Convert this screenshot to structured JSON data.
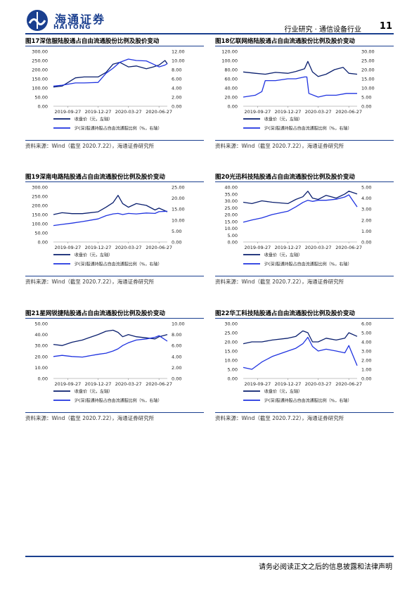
{
  "header": {
    "logo_cn": "海通证券",
    "logo_en": "HAITONG",
    "section": "行业研究 · 通信设备行业",
    "page": "11"
  },
  "footer": {
    "text": "请务必阅读正文之后的信息披露和法律声明"
  },
  "colors": {
    "price": "#0a1f6e",
    "ratio": "#1f33e0",
    "accent": "#1a3f8f"
  },
  "chart_data": [
    {
      "type": "line",
      "title": "图17深信服陆股通占自由流通股份比例及股价变动",
      "x_ticks": [
        "2019-09-27",
        "2019-12-27",
        "2020-03-27",
        "2020-06-27"
      ],
      "x_range": [
        "2019-08-15",
        "2020-07-22"
      ],
      "y_left": {
        "min": 0,
        "max": 300,
        "ticks": [
          "0.00",
          "50.00",
          "100.00",
          "150.00",
          "200.00",
          "250.00",
          "300.00"
        ]
      },
      "y_right": {
        "min": 0,
        "max": 12,
        "ticks": [
          "0.00",
          "2.00",
          "4.00",
          "6.00",
          "8.00",
          "10.00",
          "12.00"
        ]
      },
      "legend_position": "bottom-left",
      "series": [
        {
          "name": "收盘价（元，左轴）",
          "axis": "left",
          "x": [
            "2019-08-15",
            "2019-09-10",
            "2019-10-20",
            "2019-11-15",
            "2019-12-27",
            "2020-01-20",
            "2020-02-10",
            "2020-03-01",
            "2020-03-27",
            "2020-04-20",
            "2020-05-20",
            "2020-06-10",
            "2020-06-27",
            "2020-07-15",
            "2020-07-22"
          ],
          "values": [
            105,
            110,
            155,
            160,
            160,
            185,
            230,
            240,
            215,
            220,
            205,
            215,
            225,
            250,
            232
          ]
        },
        {
          "name": "沪(深)股通持股占自由流通股比例（%，右轴）",
          "axis": "right",
          "x": [
            "2019-08-15",
            "2019-09-10",
            "2019-10-20",
            "2019-11-15",
            "2019-12-27",
            "2020-01-20",
            "2020-02-10",
            "2020-03-01",
            "2020-03-27",
            "2020-04-20",
            "2020-05-20",
            "2020-06-10",
            "2020-06-27",
            "2020-07-15",
            "2020-07-22"
          ],
          "values": [
            4.4,
            4.6,
            5.1,
            5.1,
            5.2,
            7.2,
            8.3,
            9.6,
            10.3,
            10.0,
            9.9,
            9.2,
            8.6,
            9.0,
            9.3
          ]
        }
      ],
      "source": "资料来源：Wind（截至 2020.7.22），海通证券研究所"
    },
    {
      "type": "line",
      "title": "图18亿联网络陆股通占自由流通股份比例及股价变动",
      "x_ticks": [
        "2019-09-27",
        "2019-12-27",
        "2020-03-27",
        "2020-06-27"
      ],
      "x_range": [
        "2019-08-15",
        "2020-07-22"
      ],
      "y_left": {
        "min": 0,
        "max": 120,
        "ticks": [
          "0.00",
          "20.00",
          "40.00",
          "60.00",
          "80.00",
          "100.00",
          "120.00"
        ]
      },
      "y_right": {
        "min": 0,
        "max": 30,
        "ticks": [
          "0.00",
          "5.00",
          "10.00",
          "15.00",
          "20.00",
          "25.00",
          "30.00"
        ]
      },
      "legend_position": "bottom-left",
      "series": [
        {
          "name": "收盘价（元，左轴）",
          "axis": "left",
          "x": [
            "2019-08-15",
            "2019-09-20",
            "2019-10-20",
            "2019-11-20",
            "2019-12-27",
            "2020-01-20",
            "2020-02-15",
            "2020-02-25",
            "2020-03-10",
            "2020-03-27",
            "2020-04-20",
            "2020-05-15",
            "2020-06-10",
            "2020-06-27",
            "2020-07-22"
          ],
          "values": [
            75,
            72,
            70,
            74,
            72,
            76,
            82,
            98,
            75,
            65,
            70,
            80,
            85,
            72,
            70
          ]
        },
        {
          "name": "沪(深)股通持股占自由流通股比例（%，右轴）",
          "axis": "right",
          "x": [
            "2019-08-15",
            "2019-09-20",
            "2019-10-10",
            "2019-10-20",
            "2019-11-20",
            "2019-12-27",
            "2020-01-20",
            "2020-02-15",
            "2020-02-22",
            "2020-02-28",
            "2020-03-27",
            "2020-04-20",
            "2020-05-20",
            "2020-06-20",
            "2020-07-22"
          ],
          "values": [
            5,
            6,
            8,
            14,
            14,
            15,
            15,
            16,
            16,
            7,
            5,
            6,
            6,
            7,
            7
          ]
        }
      ],
      "source": "资料来源：Wind（截至 2020.7.22），海通证券研究所"
    },
    {
      "type": "line",
      "title": "图19深南电路陆股通占自由流通股份比例及股价变动",
      "x_ticks": [
        "2019-09-27",
        "2019-12-27",
        "2020-03-27",
        "2020-06-27"
      ],
      "x_range": [
        "2019-08-15",
        "2020-07-22"
      ],
      "y_left": {
        "min": 0,
        "max": 300,
        "ticks": [
          "0.00",
          "50.00",
          "100.00",
          "150.00",
          "200.00",
          "250.00",
          "300.00"
        ]
      },
      "y_right": {
        "min": 0,
        "max": 25,
        "ticks": [
          "0.00",
          "5.00",
          "10.00",
          "15.00",
          "20.00",
          "25.00"
        ]
      },
      "legend_position": "bottom-left",
      "series": [
        {
          "name": "收盘价（元，左轴）",
          "axis": "left",
          "x": [
            "2019-08-15",
            "2019-09-10",
            "2019-10-10",
            "2019-11-10",
            "2019-12-27",
            "2020-01-20",
            "2020-02-10",
            "2020-02-25",
            "2020-03-10",
            "2020-03-27",
            "2020-04-20",
            "2020-05-20",
            "2020-06-15",
            "2020-06-27",
            "2020-07-22"
          ],
          "values": [
            150,
            160,
            155,
            155,
            165,
            190,
            215,
            255,
            210,
            190,
            210,
            200,
            175,
            185,
            165
          ]
        },
        {
          "name": "沪(深)股通持股占自由流通股比例（%，右轴）",
          "axis": "right",
          "x": [
            "2019-08-15",
            "2019-09-10",
            "2019-10-10",
            "2019-11-10",
            "2019-12-27",
            "2020-01-20",
            "2020-02-10",
            "2020-02-25",
            "2020-03-10",
            "2020-03-27",
            "2020-04-20",
            "2020-05-20",
            "2020-06-15",
            "2020-06-27",
            "2020-07-22"
          ],
          "values": [
            7.5,
            8.0,
            8.6,
            9.3,
            10.5,
            12.0,
            12.8,
            13.0,
            12.5,
            13.0,
            12.8,
            13.2,
            13.0,
            13.8,
            14.0
          ]
        }
      ],
      "source": "资料来源：Wind（截至 2020.7.22），海通证券研究所"
    },
    {
      "type": "line",
      "title": "图20光迅科技陆股通占自由流通股份比例及股价变动",
      "x_ticks": [
        "2019-09-27",
        "2019-12-27",
        "2020-03-27",
        "2020-06-27"
      ],
      "x_range": [
        "2019-08-15",
        "2020-07-22"
      ],
      "y_left": {
        "min": 0,
        "max": 40,
        "ticks": [
          "0.00",
          "5.00",
          "10.00",
          "15.00",
          "20.00",
          "25.00",
          "30.00",
          "35.00",
          "40.00"
        ]
      },
      "y_right": {
        "min": 0,
        "max": 5,
        "ticks": [
          "0.00",
          "1.00",
          "2.00",
          "3.00",
          "4.00",
          "5.00"
        ]
      },
      "legend_position": "bottom-left",
      "series": [
        {
          "name": "收盘价（元，左轴）",
          "axis": "left",
          "x": [
            "2019-08-15",
            "2019-09-10",
            "2019-10-10",
            "2019-11-10",
            "2019-12-27",
            "2020-01-20",
            "2020-02-10",
            "2020-02-25",
            "2020-03-10",
            "2020-03-27",
            "2020-04-20",
            "2020-05-20",
            "2020-06-15",
            "2020-06-27",
            "2020-07-22"
          ],
          "values": [
            29,
            28,
            30,
            29,
            28,
            31,
            33,
            37,
            32,
            31,
            34,
            32,
            35,
            37,
            35
          ]
        },
        {
          "name": "沪(深)股通持股占自由流通股比例（%，右轴）",
          "axis": "right",
          "x": [
            "2019-08-15",
            "2019-09-10",
            "2019-10-10",
            "2019-11-10",
            "2019-12-27",
            "2020-01-20",
            "2020-02-10",
            "2020-02-25",
            "2020-03-10",
            "2020-03-27",
            "2020-04-20",
            "2020-05-20",
            "2020-06-15",
            "2020-06-27",
            "2020-07-22"
          ],
          "values": [
            1.8,
            2.0,
            2.2,
            2.5,
            2.8,
            3.2,
            3.6,
            3.8,
            3.7,
            3.8,
            3.8,
            3.9,
            4.1,
            4.3,
            3.2
          ]
        }
      ],
      "source": "资料来源：Wind（截至 2020.7.22），海通证券研究所"
    },
    {
      "type": "line",
      "title": "图21星网锐捷陆股通占自由流通股份比例及股价变动",
      "x_ticks": [
        "2019-09-27",
        "2019-12-27",
        "2020-03-27",
        "2020-06-27"
      ],
      "x_range": [
        "2019-08-15",
        "2020-07-22"
      ],
      "y_left": {
        "min": 0,
        "max": 50,
        "ticks": [
          "0.00",
          "10.00",
          "20.00",
          "30.00",
          "40.00",
          "50.00"
        ]
      },
      "y_right": {
        "min": 0,
        "max": 10,
        "ticks": [
          "0.00",
          "2.00",
          "4.00",
          "6.00",
          "8.00",
          "10.00"
        ]
      },
      "legend_position": "bottom-left",
      "series": [
        {
          "name": "收盘价（元，左轴）",
          "axis": "left",
          "x": [
            "2019-08-15",
            "2019-09-10",
            "2019-10-10",
            "2019-11-10",
            "2019-12-27",
            "2020-01-20",
            "2020-02-10",
            "2020-02-25",
            "2020-03-10",
            "2020-03-27",
            "2020-04-20",
            "2020-05-20",
            "2020-06-15",
            "2020-06-27",
            "2020-07-22"
          ],
          "values": [
            31,
            30,
            33,
            35,
            40,
            43,
            44,
            42,
            38,
            40,
            38,
            37,
            36,
            38,
            40
          ]
        },
        {
          "name": "沪(深)股通持股占自由流通股比例（%，右轴）",
          "axis": "right",
          "x": [
            "2019-08-15",
            "2019-09-10",
            "2019-10-10",
            "2019-11-10",
            "2019-12-27",
            "2020-01-20",
            "2020-02-10",
            "2020-02-25",
            "2020-03-10",
            "2020-03-27",
            "2020-04-20",
            "2020-05-20",
            "2020-06-15",
            "2020-06-27",
            "2020-07-22"
          ],
          "values": [
            4.0,
            4.2,
            4.0,
            3.9,
            4.4,
            4.6,
            5.0,
            5.4,
            6.0,
            6.5,
            7.0,
            7.2,
            7.5,
            7.8,
            6.8
          ]
        }
      ],
      "source": "资料来源：Wind（截至 2020.7.22），海通证券研究所"
    },
    {
      "type": "line",
      "title": "图22华工科技陆股通占自由流通股份比例及股价变动",
      "x_ticks": [
        "2019-09-27",
        "2019-12-27",
        "2020-03-27",
        "2020-06-27"
      ],
      "x_range": [
        "2019-08-15",
        "2020-07-22"
      ],
      "y_left": {
        "min": 0,
        "max": 30,
        "ticks": [
          "0.00",
          "5.00",
          "10.00",
          "15.00",
          "20.00",
          "25.00",
          "30.00"
        ]
      },
      "y_right": {
        "min": 0,
        "max": 6,
        "ticks": [
          "0.00",
          "1.00",
          "2.00",
          "3.00",
          "4.00",
          "5.00",
          "6.00"
        ]
      },
      "legend_position": "bottom-left",
      "series": [
        {
          "name": "收盘价（元，左轴）",
          "axis": "left",
          "x": [
            "2019-08-15",
            "2019-09-10",
            "2019-10-10",
            "2019-11-10",
            "2019-12-27",
            "2020-01-20",
            "2020-02-10",
            "2020-02-25",
            "2020-03-10",
            "2020-03-27",
            "2020-04-20",
            "2020-05-20",
            "2020-06-15",
            "2020-06-27",
            "2020-07-22"
          ],
          "values": [
            19,
            20,
            20,
            21,
            22,
            23,
            26,
            25,
            20,
            20,
            22,
            21,
            22,
            25,
            23
          ]
        },
        {
          "name": "沪(深)股通持股占自由流通股比例（%，右轴）",
          "axis": "right",
          "x": [
            "2019-08-15",
            "2019-09-10",
            "2019-10-10",
            "2019-11-10",
            "2019-12-27",
            "2020-01-20",
            "2020-02-10",
            "2020-02-25",
            "2020-03-10",
            "2020-03-27",
            "2020-04-20",
            "2020-05-20",
            "2020-06-15",
            "2020-06-27",
            "2020-07-22"
          ],
          "values": [
            1.2,
            1.0,
            1.8,
            2.4,
            3.0,
            3.3,
            3.8,
            4.5,
            3.5,
            3.0,
            3.2,
            3.0,
            2.8,
            3.6,
            1.4
          ]
        }
      ],
      "source": "资料来源：Wind（截至 2020.7.22），海通证券研究所"
    }
  ]
}
